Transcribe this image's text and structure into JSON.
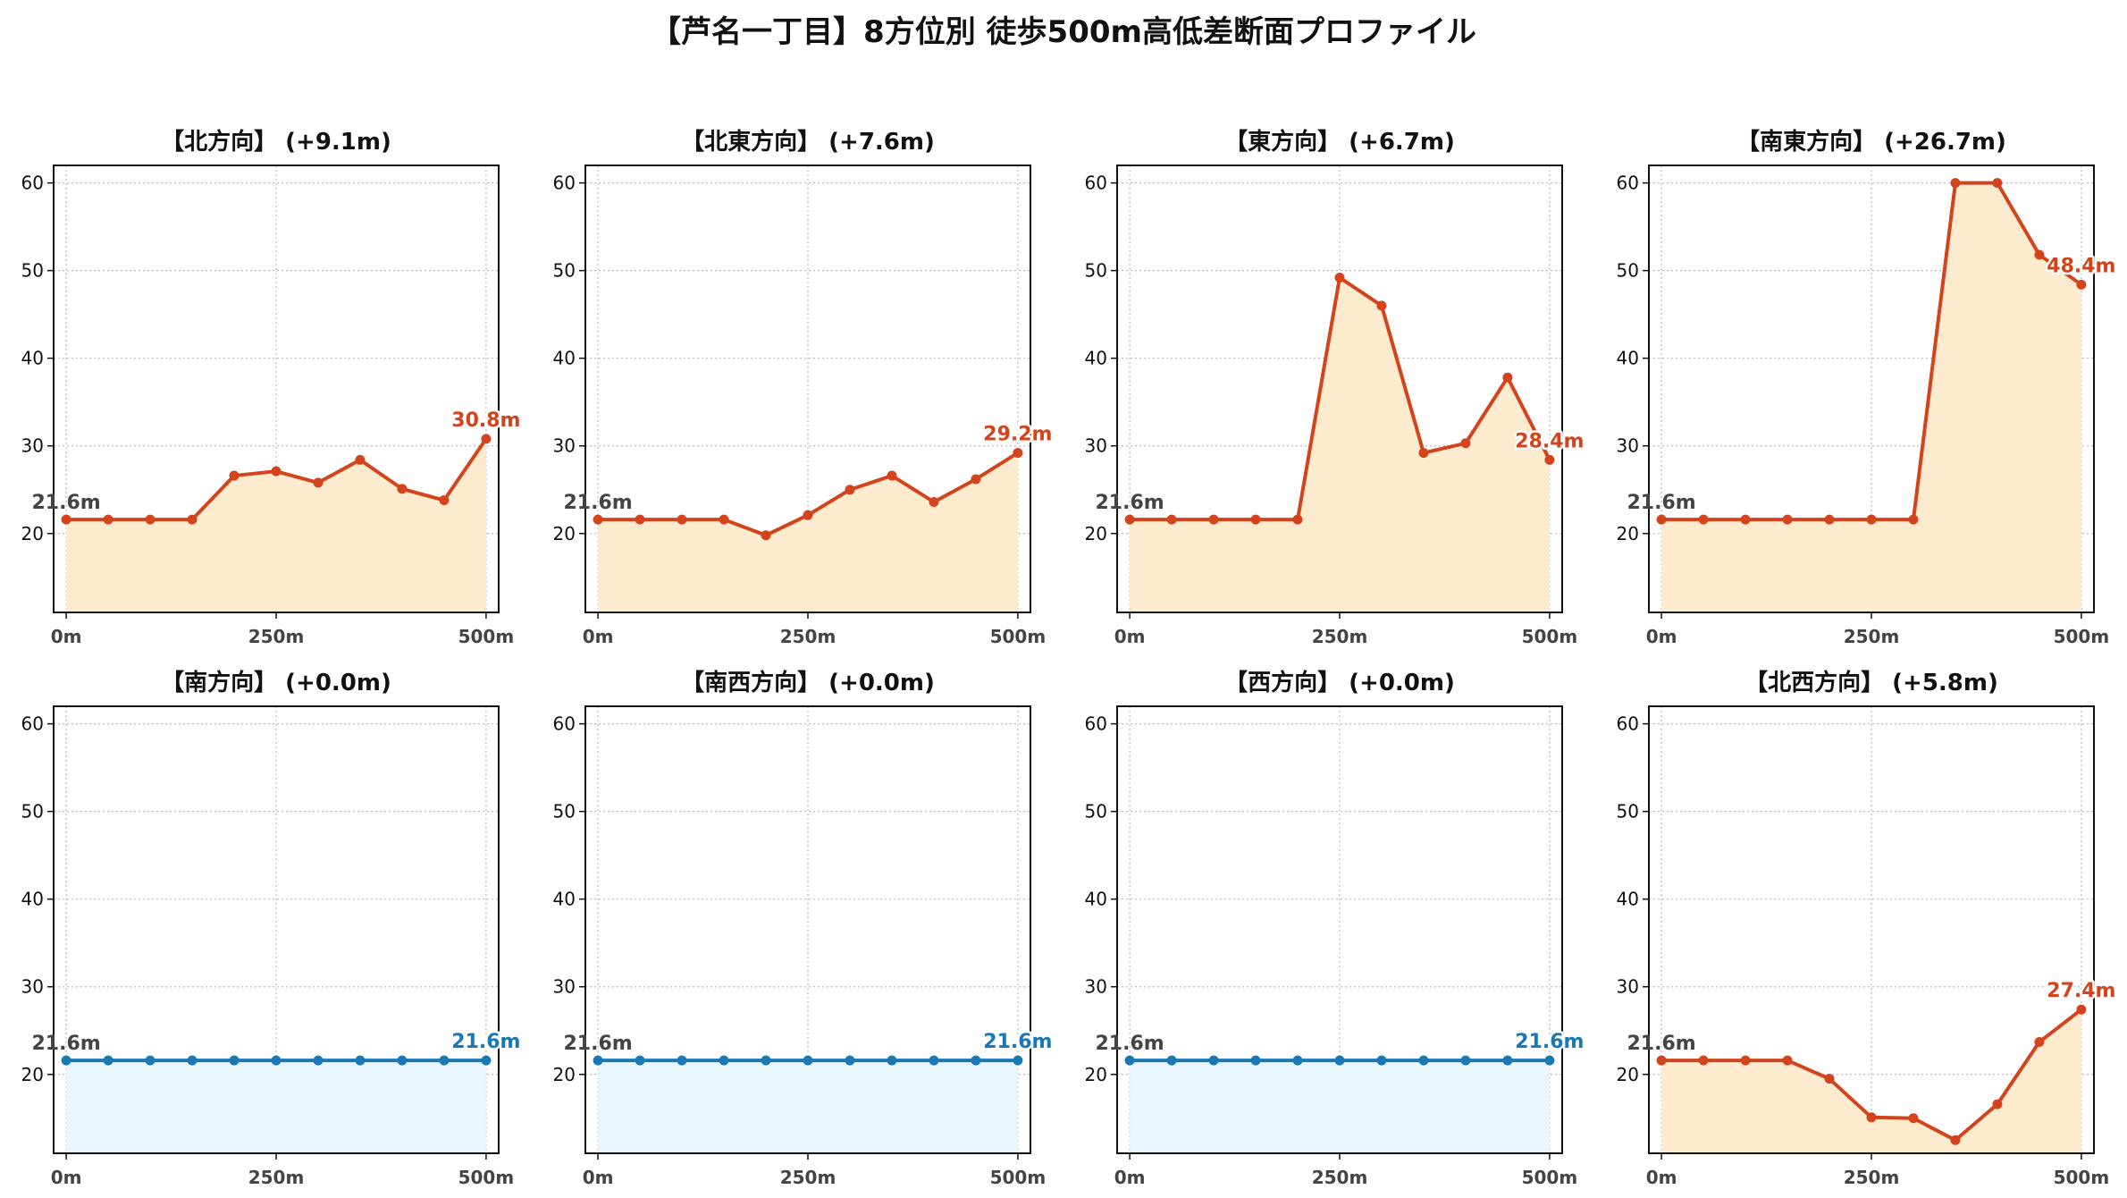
{
  "title": "【芦名一丁目】8方位別 徒歩500m高低差断面プロファイル",
  "colors": {
    "rise_line": "#d3441c",
    "rise_fill": "#fdebd0",
    "flat_line": "#1a78b4",
    "flat_fill": "#e9f6fb",
    "start_label": "#444444",
    "grid": "#bbbbbb",
    "axis": "#111111"
  },
  "chart_data": [
    {
      "type": "area",
      "title": "【北方向】 (+9.1m)",
      "x": [
        0,
        50,
        100,
        150,
        200,
        250,
        300,
        350,
        400,
        450,
        500
      ],
      "y": [
        21.6,
        21.6,
        21.6,
        21.6,
        26.6,
        27.1,
        25.8,
        28.4,
        25.1,
        23.8,
        30.8
      ],
      "start_label": "21.6m",
      "end_label": "30.8m",
      "trend": "rise",
      "ylim": [
        11,
        62
      ],
      "xlim": [
        -15,
        515
      ],
      "xticks": [
        "0m",
        "250m",
        "500m"
      ],
      "yticks": [
        20,
        30,
        40,
        50,
        60
      ],
      "grid": true
    },
    {
      "type": "area",
      "title": "【北東方向】 (+7.6m)",
      "x": [
        0,
        50,
        100,
        150,
        200,
        250,
        300,
        350,
        400,
        450,
        500
      ],
      "y": [
        21.6,
        21.6,
        21.6,
        21.6,
        19.8,
        22.1,
        25.0,
        26.6,
        23.6,
        26.2,
        29.2
      ],
      "start_label": "21.6m",
      "end_label": "29.2m",
      "trend": "rise",
      "ylim": [
        11,
        62
      ],
      "xlim": [
        -15,
        515
      ],
      "xticks": [
        "0m",
        "250m",
        "500m"
      ],
      "yticks": [
        20,
        30,
        40,
        50,
        60
      ],
      "grid": true
    },
    {
      "type": "area",
      "title": "【東方向】 (+6.7m)",
      "x": [
        0,
        50,
        100,
        150,
        200,
        250,
        300,
        350,
        400,
        450,
        500
      ],
      "y": [
        21.6,
        21.6,
        21.6,
        21.6,
        21.6,
        49.2,
        46.0,
        29.2,
        30.3,
        37.8,
        28.4
      ],
      "start_label": "21.6m",
      "end_label": "28.4m",
      "trend": "rise",
      "ylim": [
        11,
        62
      ],
      "xlim": [
        -15,
        515
      ],
      "xticks": [
        "0m",
        "250m",
        "500m"
      ],
      "yticks": [
        20,
        30,
        40,
        50,
        60
      ],
      "grid": true
    },
    {
      "type": "area",
      "title": "【南東方向】 (+26.7m)",
      "x": [
        0,
        50,
        100,
        150,
        200,
        250,
        300,
        350,
        400,
        450,
        500
      ],
      "y": [
        21.6,
        21.6,
        21.6,
        21.6,
        21.6,
        21.6,
        21.6,
        60.0,
        60.0,
        51.8,
        48.4
      ],
      "start_label": "21.6m",
      "end_label": "48.4m",
      "trend": "rise",
      "ylim": [
        11,
        62
      ],
      "xlim": [
        -15,
        515
      ],
      "xticks": [
        "0m",
        "250m",
        "500m"
      ],
      "yticks": [
        20,
        30,
        40,
        50,
        60
      ],
      "grid": true
    },
    {
      "type": "area",
      "title": "【南方向】 (+0.0m)",
      "x": [
        0,
        50,
        100,
        150,
        200,
        250,
        300,
        350,
        400,
        450,
        500
      ],
      "y": [
        21.6,
        21.6,
        21.6,
        21.6,
        21.6,
        21.6,
        21.6,
        21.6,
        21.6,
        21.6,
        21.6
      ],
      "start_label": "21.6m",
      "end_label": "21.6m",
      "trend": "flat",
      "ylim": [
        11,
        62
      ],
      "xlim": [
        -15,
        515
      ],
      "xticks": [
        "0m",
        "250m",
        "500m"
      ],
      "yticks": [
        20,
        30,
        40,
        50,
        60
      ],
      "grid": true
    },
    {
      "type": "area",
      "title": "【南西方向】 (+0.0m)",
      "x": [
        0,
        50,
        100,
        150,
        200,
        250,
        300,
        350,
        400,
        450,
        500
      ],
      "y": [
        21.6,
        21.6,
        21.6,
        21.6,
        21.6,
        21.6,
        21.6,
        21.6,
        21.6,
        21.6,
        21.6
      ],
      "start_label": "21.6m",
      "end_label": "21.6m",
      "trend": "flat",
      "ylim": [
        11,
        62
      ],
      "xlim": [
        -15,
        515
      ],
      "xticks": [
        "0m",
        "250m",
        "500m"
      ],
      "yticks": [
        20,
        30,
        40,
        50,
        60
      ],
      "grid": true
    },
    {
      "type": "area",
      "title": "【西方向】 (+0.0m)",
      "x": [
        0,
        50,
        100,
        150,
        200,
        250,
        300,
        350,
        400,
        450,
        500
      ],
      "y": [
        21.6,
        21.6,
        21.6,
        21.6,
        21.6,
        21.6,
        21.6,
        21.6,
        21.6,
        21.6,
        21.6
      ],
      "start_label": "21.6m",
      "end_label": "21.6m",
      "trend": "flat",
      "ylim": [
        11,
        62
      ],
      "xlim": [
        -15,
        515
      ],
      "xticks": [
        "0m",
        "250m",
        "500m"
      ],
      "yticks": [
        20,
        30,
        40,
        50,
        60
      ],
      "grid": true
    },
    {
      "type": "area",
      "title": "【北西方向】 (+5.8m)",
      "x": [
        0,
        50,
        100,
        150,
        200,
        250,
        300,
        350,
        400,
        450,
        500
      ],
      "y": [
        21.6,
        21.6,
        21.6,
        21.6,
        19.5,
        15.1,
        15.0,
        12.5,
        16.6,
        23.7,
        27.4
      ],
      "start_label": "21.6m",
      "end_label": "27.4m",
      "trend": "rise",
      "ylim": [
        11,
        62
      ],
      "xlim": [
        -15,
        515
      ],
      "xticks": [
        "0m",
        "250m",
        "500m"
      ],
      "yticks": [
        20,
        30,
        40,
        50,
        60
      ],
      "grid": true
    }
  ]
}
